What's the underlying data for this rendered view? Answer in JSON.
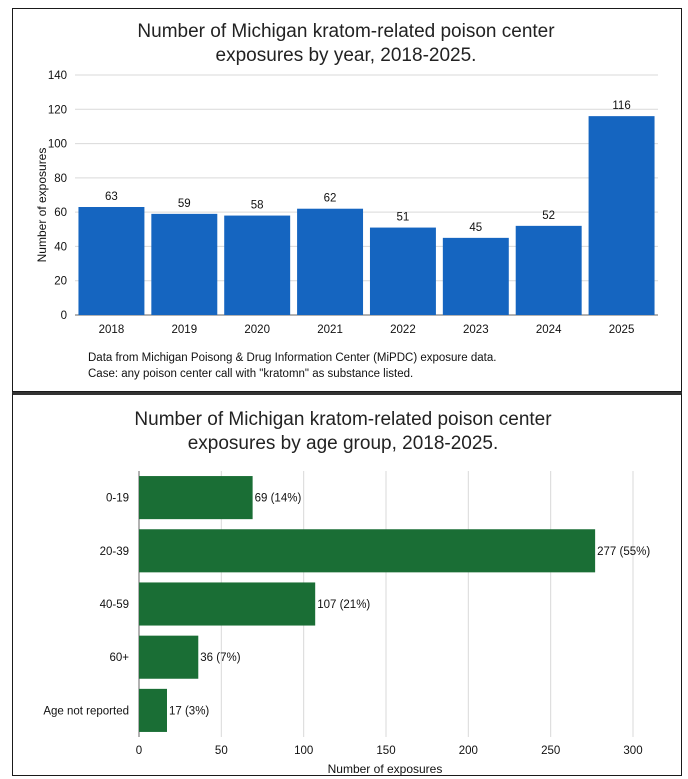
{
  "chart_data": [
    {
      "type": "bar",
      "title_lines": [
        "Number of Michigan kratom-related poison center",
        "exposures by year, 2018-2025."
      ],
      "xlabel": "",
      "ylabel": "Number of exposures",
      "categories": [
        "2018",
        "2019",
        "2020",
        "2021",
        "2022",
        "2023",
        "2024",
        "2025"
      ],
      "values": [
        63,
        59,
        58,
        62,
        51,
        45,
        52,
        116
      ],
      "data_labels": [
        "63",
        "59",
        "58",
        "62",
        "51",
        "45",
        "52",
        "116"
      ],
      "ylim": [
        0,
        140
      ],
      "yticks": [
        0,
        20,
        40,
        60,
        80,
        100,
        120,
        140
      ],
      "grid": true,
      "bar_color": "#1565c0",
      "notes": [
        "Data from Michigan Poisong & Drug Information Center (MiPDC) exposure data.",
        "Case: any poison center call with \"kratomn\" as substance listed."
      ]
    },
    {
      "type": "bar",
      "orientation": "horizontal",
      "title_lines": [
        "Number of Michigan kratom-related poison center",
        "exposures by age group, 2018-2025."
      ],
      "xlabel": "Number  of exposures",
      "ylabel": "",
      "categories": [
        "0-19",
        "20-39",
        "40-59",
        "60+",
        "Age not reported"
      ],
      "values": [
        69,
        277,
        107,
        36,
        17
      ],
      "data_labels": [
        "69 (14%)",
        "277 (55%)",
        "107 (21%)",
        "36 (7%)",
        "17 (3%)"
      ],
      "xlim": [
        0,
        300
      ],
      "xticks": [
        0,
        50,
        100,
        150,
        200,
        250,
        300
      ],
      "grid": true,
      "bar_color": "#1a6e35"
    }
  ]
}
